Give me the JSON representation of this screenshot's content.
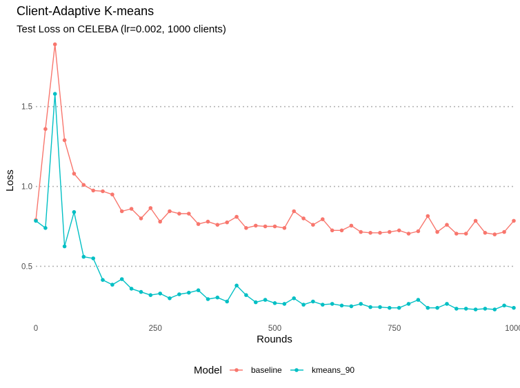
{
  "chart_data": {
    "type": "line",
    "title": "Client-Adaptive K-means",
    "subtitle": "Test Loss on CELEBA (lr=0.002, 1000 clients)",
    "xlabel": "Rounds",
    "ylabel": "Loss",
    "xlim": [
      0,
      1000
    ],
    "ylim": [
      0.2,
      1.9
    ],
    "xticks": [
      0,
      250,
      500,
      750,
      1000
    ],
    "yticks": [
      0.5,
      1.0,
      1.5
    ],
    "ytick_labels": [
      "0.5",
      "1.0",
      "1.5"
    ],
    "grid": "horizontal major, dotted",
    "legend": {
      "title": "Model",
      "position": "bottom"
    },
    "x": [
      0,
      20,
      40,
      60,
      80,
      100,
      120,
      140,
      160,
      180,
      200,
      220,
      240,
      260,
      280,
      300,
      320,
      340,
      360,
      380,
      400,
      420,
      440,
      460,
      480,
      500,
      520,
      540,
      560,
      580,
      600,
      620,
      640,
      660,
      680,
      700,
      720,
      740,
      760,
      780,
      800,
      820,
      840,
      860,
      880,
      900,
      920,
      940,
      960,
      980,
      1000
    ],
    "series": [
      {
        "name": "baseline",
        "color": "#F8766D",
        "values": [
          0.79,
          1.36,
          1.89,
          1.29,
          1.08,
          1.01,
          0.975,
          0.97,
          0.95,
          0.845,
          0.86,
          0.8,
          0.865,
          0.78,
          0.845,
          0.83,
          0.83,
          0.765,
          0.78,
          0.76,
          0.775,
          0.81,
          0.74,
          0.755,
          0.75,
          0.75,
          0.74,
          0.845,
          0.8,
          0.76,
          0.795,
          0.725,
          0.725,
          0.755,
          0.715,
          0.71,
          0.71,
          0.715,
          0.725,
          0.705,
          0.72,
          0.815,
          0.715,
          0.76,
          0.705,
          0.705,
          0.785,
          0.71,
          0.7,
          0.715,
          0.785
        ]
      },
      {
        "name": "kmeans_90",
        "color": "#00BFC4",
        "values": [
          0.785,
          0.74,
          1.58,
          0.625,
          0.84,
          0.56,
          0.55,
          0.415,
          0.385,
          0.42,
          0.36,
          0.34,
          0.32,
          0.33,
          0.3,
          0.325,
          0.335,
          0.35,
          0.295,
          0.305,
          0.28,
          0.38,
          0.32,
          0.275,
          0.29,
          0.27,
          0.265,
          0.3,
          0.26,
          0.28,
          0.26,
          0.265,
          0.255,
          0.25,
          0.265,
          0.245,
          0.245,
          0.24,
          0.24,
          0.265,
          0.29,
          0.24,
          0.24,
          0.265,
          0.235,
          0.235,
          0.23,
          0.235,
          0.23,
          0.255,
          0.24
        ]
      }
    ]
  }
}
